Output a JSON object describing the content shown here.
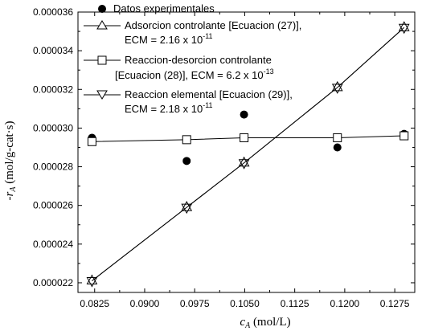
{
  "chart_data": {
    "type": "scatter",
    "xlabel": "c_A (mol/L)",
    "ylabel": "-r_A (mol/g-cat·s)",
    "xlim": [
      0.08,
      0.1305
    ],
    "ylim": [
      2.15e-05,
      3.6e-05
    ],
    "xticks": [
      "0.0825",
      "0.0900",
      "0.0975",
      "0.1050",
      "0.1125",
      "0.1200",
      "0.1275"
    ],
    "yticks": [
      "0.000022",
      "0.000024",
      "0.000026",
      "0.000028",
      "0.000030",
      "0.000032",
      "0.000034",
      "0.000036"
    ],
    "grid": false,
    "legend_position": "top-left",
    "x": [
      0.0821,
      0.0963,
      0.1049,
      0.1189,
      0.1289
    ],
    "series": [
      {
        "name": "Datos experimentales",
        "style": "filled-circle",
        "line": false,
        "values": [
          2.95e-05,
          2.83e-05,
          3.07e-05,
          2.9e-05,
          2.97e-05
        ]
      },
      {
        "name": "Adsorcion controlante [Ecuacion (27)], ECM = 2.16 x 10-11",
        "style": "open-triangle-up",
        "line": true,
        "values": [
          2.21e-05,
          2.59e-05,
          2.82e-05,
          3.21e-05,
          3.52e-05
        ]
      },
      {
        "name": "Reaccion-desorcion controlante [Ecuacion (28)], ECM = 6.2 x 10-13",
        "style": "open-square",
        "line": true,
        "values": [
          2.93e-05,
          2.94e-05,
          2.95e-05,
          2.95e-05,
          2.96e-05
        ]
      },
      {
        "name": "Reaccion elemental [Ecuacion (29)], ECM = 2.18 x 10-11",
        "style": "open-triangle-down",
        "line": true,
        "values": [
          2.21e-05,
          2.59e-05,
          2.82e-05,
          3.21e-05,
          3.52e-05
        ]
      }
    ]
  },
  "axes": {
    "x_title_main": "c",
    "x_title_sub": "A",
    "x_title_unit": " (mol/L)",
    "y_title_prefix": "-r",
    "y_title_sub": "A",
    "y_title_unit": " (mol/g-cat·s)"
  },
  "legend": {
    "entry1": "Datos experimentales",
    "entry2_line1": "Adsorcion controlante [Ecuacion (27)],",
    "entry2_line2": "ECM = 2.16 x 10",
    "entry2_exp": "-11",
    "entry3_line1": "Reaccion-desorcion controlante",
    "entry3_line2": "[Ecuacion (28)], ECM = 6.2 x 10",
    "entry3_exp": "-13",
    "entry4_line1": "Reaccion elemental [Ecuacion (29)],",
    "entry4_line2": "ECM = 2.18 x 10",
    "entry4_exp": "-11"
  },
  "colors": {
    "ink": "#000000",
    "background": "#ffffff"
  }
}
